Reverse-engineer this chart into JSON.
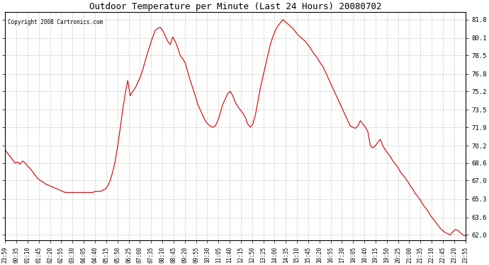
{
  "title": "Outdoor Temperature per Minute (Last 24 Hours) 20080702",
  "copyright": "Copyright 2008 Cartronics.com",
  "line_color": "#cc0000",
  "background_color": "#ffffff",
  "grid_color": "#bbbbbb",
  "yticks": [
    62.0,
    63.6,
    65.3,
    67.0,
    68.6,
    70.2,
    71.9,
    73.5,
    75.2,
    76.8,
    78.5,
    80.1,
    81.8
  ],
  "ylim": [
    61.5,
    82.5
  ],
  "xtick_labels": [
    "23:59",
    "00:35",
    "01:10",
    "01:45",
    "02:20",
    "02:55",
    "03:30",
    "04:05",
    "04:40",
    "05:15",
    "05:50",
    "06:25",
    "07:00",
    "07:35",
    "08:10",
    "08:45",
    "09:20",
    "09:55",
    "10:30",
    "11:05",
    "11:40",
    "12:15",
    "12:50",
    "13:25",
    "14:00",
    "14:35",
    "15:10",
    "15:45",
    "16:20",
    "16:55",
    "17:30",
    "18:05",
    "18:40",
    "19:15",
    "19:50",
    "20:25",
    "21:00",
    "21:35",
    "22:10",
    "22:45",
    "23:20",
    "23:55"
  ],
  "data_y": [
    69.8,
    69.5,
    69.2,
    68.9,
    68.6,
    68.7,
    68.5,
    68.8,
    68.6,
    68.3,
    68.1,
    67.8,
    67.5,
    67.2,
    67.0,
    66.9,
    66.7,
    66.6,
    66.5,
    66.4,
    66.3,
    66.2,
    66.1,
    66.0,
    65.9,
    65.9,
    65.9,
    65.9,
    65.9,
    65.9,
    65.9,
    65.9,
    65.9,
    65.9,
    65.9,
    65.9,
    66.0,
    66.0,
    66.0,
    66.1,
    66.2,
    66.5,
    67.0,
    67.8,
    68.8,
    70.2,
    71.8,
    73.5,
    75.0,
    76.2,
    74.8,
    75.2,
    75.5,
    76.0,
    76.5,
    77.2,
    78.0,
    78.8,
    79.5,
    80.2,
    80.8,
    81.0,
    81.1,
    80.8,
    80.3,
    79.8,
    79.5,
    80.2,
    79.8,
    79.2,
    78.5,
    78.2,
    77.8,
    77.0,
    76.2,
    75.5,
    74.8,
    74.0,
    73.5,
    73.0,
    72.5,
    72.2,
    72.0,
    71.9,
    72.0,
    72.5,
    73.2,
    74.0,
    74.5,
    75.0,
    75.2,
    74.8,
    74.2,
    73.8,
    73.5,
    73.2,
    72.8,
    72.2,
    71.9,
    72.2,
    73.0,
    74.2,
    75.5,
    76.5,
    77.5,
    78.5,
    79.5,
    80.2,
    80.8,
    81.2,
    81.5,
    81.8,
    81.6,
    81.4,
    81.2,
    81.0,
    80.7,
    80.4,
    80.2,
    80.0,
    79.8,
    79.5,
    79.2,
    78.8,
    78.5,
    78.2,
    77.8,
    77.5,
    77.0,
    76.5,
    76.0,
    75.5,
    75.0,
    74.5,
    74.0,
    73.5,
    73.0,
    72.5,
    72.0,
    71.9,
    71.8,
    72.0,
    72.5,
    72.2,
    71.9,
    71.5,
    70.2,
    70.0,
    70.2,
    70.5,
    70.8,
    70.2,
    69.8,
    69.5,
    69.2,
    68.8,
    68.5,
    68.2,
    67.8,
    67.5,
    67.2,
    66.9,
    66.5,
    66.2,
    65.8,
    65.5,
    65.2,
    64.8,
    64.5,
    64.2,
    63.8,
    63.5,
    63.2,
    62.9,
    62.6,
    62.4,
    62.2,
    62.1,
    62.0,
    62.3,
    62.5,
    62.4,
    62.2,
    62.0,
    61.9
  ]
}
